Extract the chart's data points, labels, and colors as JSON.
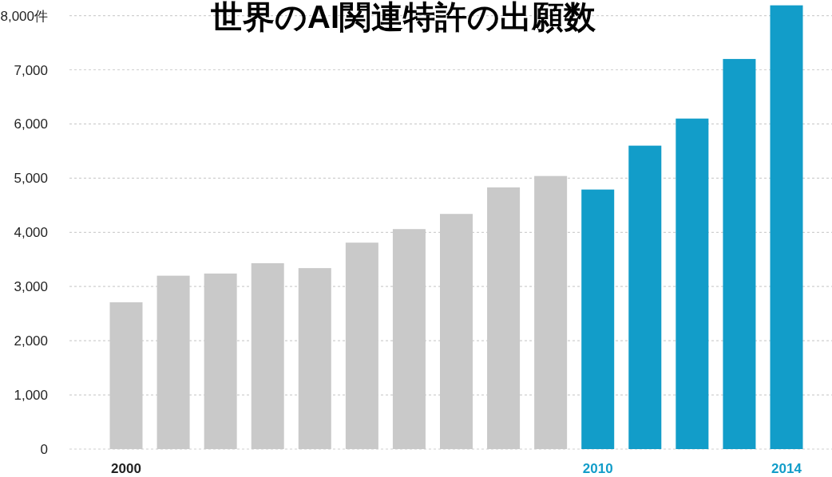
{
  "chart_data": {
    "type": "bar",
    "title": "世界のAI関連特許の出願数",
    "categories": [
      "2000",
      null,
      null,
      null,
      null,
      null,
      null,
      null,
      null,
      null,
      "2010",
      null,
      null,
      null,
      "2014"
    ],
    "values": [
      2710,
      3200,
      3240,
      3430,
      3340,
      3810,
      4060,
      4340,
      4830,
      5040,
      4790,
      5600,
      6100,
      7200,
      8190
    ],
    "colors": [
      "#c9c9c9",
      "#c9c9c9",
      "#c9c9c9",
      "#c9c9c9",
      "#c9c9c9",
      "#c9c9c9",
      "#c9c9c9",
      "#c9c9c9",
      "#c9c9c9",
      "#c9c9c9",
      "#129dc9",
      "#129dc9",
      "#129dc9",
      "#129dc9",
      "#129dc9"
    ],
    "ylim": [
      0,
      8200
    ],
    "yticks": [
      0,
      {
        "value": 1000,
        "label": "1,000"
      },
      {
        "value": 2000,
        "label": "2,000"
      },
      {
        "value": 3000,
        "label": "3,000"
      },
      {
        "value": 4000,
        "label": "4,000"
      },
      {
        "value": 5000,
        "label": "5,000"
      },
      {
        "value": 6000,
        "label": "6,000"
      },
      {
        "value": 7000,
        "label": "7,000"
      },
      {
        "value": 8000,
        "label": "8,000件"
      }
    ],
    "grid": "y"
  }
}
